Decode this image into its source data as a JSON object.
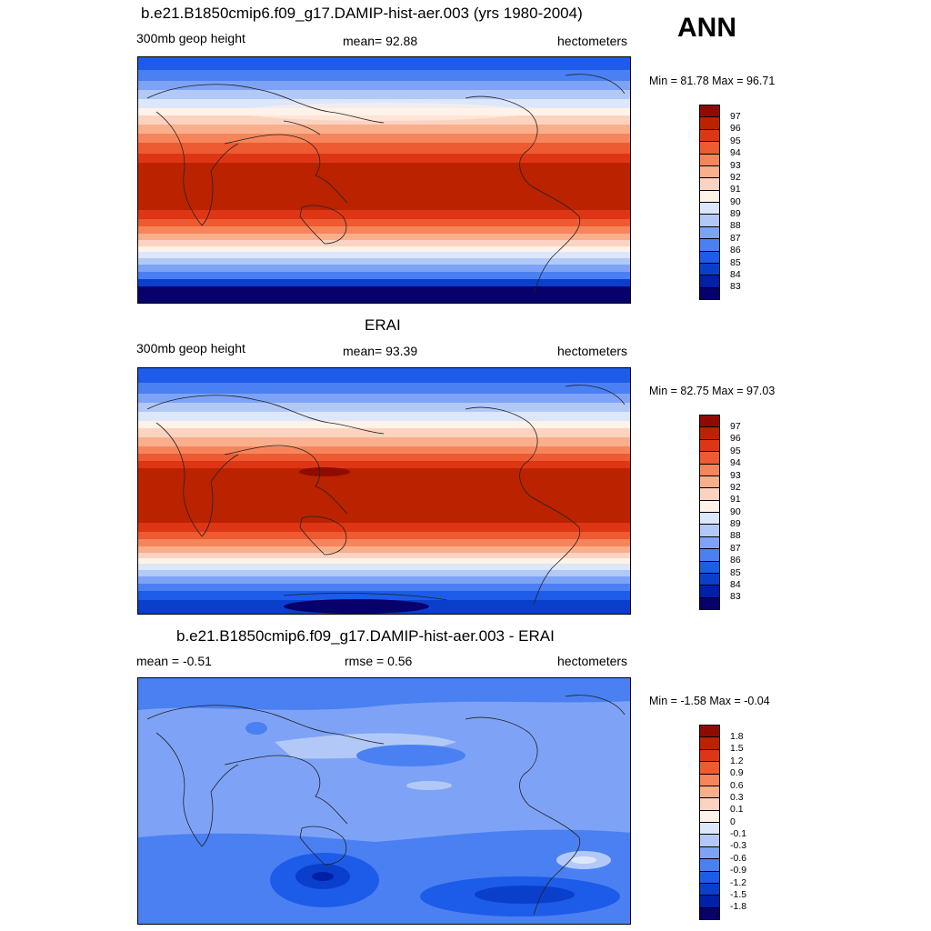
{
  "season": "ANN",
  "palette_colors": [
    "#08006b",
    "#0020a8",
    "#0a3fcc",
    "#1c5ce8",
    "#4a80f2",
    "#7ea3f6",
    "#b2c9f8",
    "#dce7fb",
    "#fff2e8",
    "#fbd3c1",
    "#f9ae8c",
    "#f6855c",
    "#ee5a31",
    "#de3615",
    "#bb2200",
    "#8f0b00"
  ],
  "panels": [
    {
      "title": "b.e21.B1850cmip6.f09_g17.DAMIP-hist-aer.003 (yrs 1980-2004)",
      "left_label": "300mb geop height",
      "center_label": "mean=  92.88",
      "units": "hectometers",
      "minmax": "Min =  81.78 Max =  96.71",
      "colorbar_levels": [
        "97",
        "96",
        "95",
        "94",
        "93",
        "92",
        "91",
        "90",
        "89",
        "88",
        "87",
        "86",
        "85",
        "84",
        "83"
      ]
    },
    {
      "title": "ERAI",
      "left_label": "300mb geop height",
      "center_label": "mean=  93.39",
      "units": "hectometers",
      "minmax": "Min =  82.75 Max =  97.03",
      "colorbar_levels": [
        "97",
        "96",
        "95",
        "94",
        "93",
        "92",
        "91",
        "90",
        "89",
        "88",
        "87",
        "86",
        "85",
        "84",
        "83"
      ]
    },
    {
      "title": "b.e21.B1850cmip6.f09_g17.DAMIP-hist-aer.003 - ERAI",
      "left_label": "mean =  -0.51",
      "center_label": "rmse =   0.56",
      "units": "hectometers",
      "minmax": "Min =  -1.58 Max =  -0.04",
      "colorbar_levels": [
        "1.8",
        "1.5",
        "1.2",
        "0.9",
        "0.6",
        "0.3",
        "0.1",
        "0",
        "-0.1",
        "-0.3",
        "-0.6",
        "-0.9",
        "-1.2",
        "-1.5",
        "-1.8"
      ]
    }
  ]
}
